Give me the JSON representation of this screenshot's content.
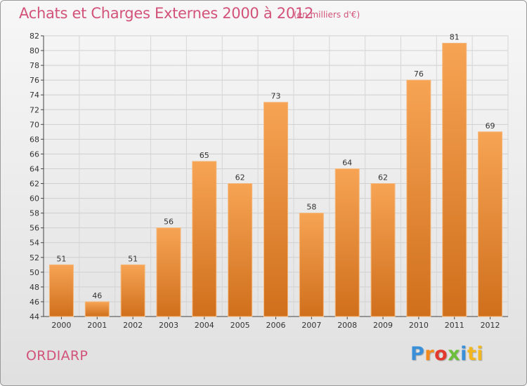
{
  "title": "Achats et Charges Externes 2000 à 2012",
  "subtitle": "(en milliers d'€)",
  "commune": "ORDIARP",
  "logo": {
    "letters": [
      "P",
      "r",
      "o",
      "x",
      "i",
      "ti"
    ]
  },
  "colors": {
    "title": "#d2527a",
    "bar_top": "#f6a454",
    "bar_bottom": "#d06f1c",
    "bar_stroke": "#f4b87e"
  },
  "chart_data": {
    "type": "bar",
    "categories": [
      "2000",
      "2001",
      "2002",
      "2003",
      "2004",
      "2005",
      "2006",
      "2007",
      "2008",
      "2009",
      "2010",
      "2011",
      "2012"
    ],
    "values": [
      51,
      46,
      51,
      56,
      65,
      62,
      73,
      58,
      64,
      62,
      76,
      81,
      69
    ],
    "ylim": [
      44,
      82
    ],
    "yticks": [
      44,
      46,
      48,
      50,
      52,
      54,
      56,
      58,
      60,
      62,
      64,
      66,
      68,
      70,
      72,
      74,
      76,
      78,
      80,
      82
    ],
    "grid": true,
    "legend": "none"
  }
}
